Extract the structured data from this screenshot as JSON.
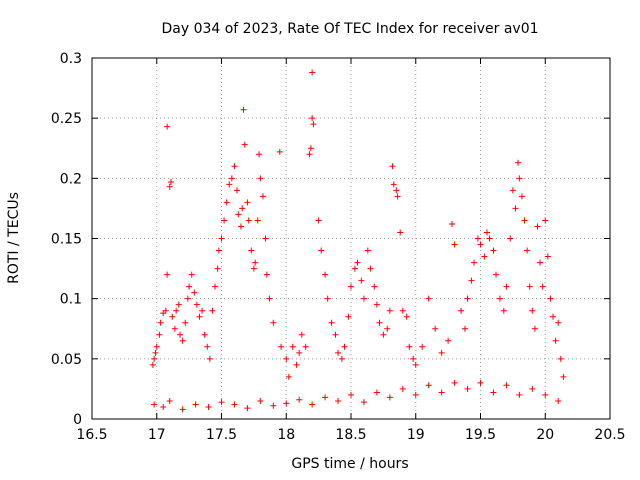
{
  "chart_data": {
    "type": "scatter",
    "title": "Day 034 of 2023, Rate Of TEC Index for receiver av01",
    "xlabel": "GPS time / hours",
    "ylabel": "ROTI / TECUs",
    "xlim": [
      16.5,
      20.5
    ],
    "ylim": [
      0,
      0.3
    ],
    "x_ticks": [
      "16.5",
      "17",
      "17.5",
      "18",
      "18.5",
      "19",
      "19.5",
      "20",
      "20.5"
    ],
    "y_ticks": [
      "0",
      "0.05",
      "0.1",
      "0.15",
      "0.2",
      "0.25",
      "0.3"
    ],
    "x_tick_values": [
      16.5,
      17,
      17.5,
      18,
      18.5,
      19,
      19.5,
      20,
      20.5
    ],
    "y_tick_values": [
      0,
      0.05,
      0.1,
      0.15,
      0.2,
      0.25,
      0.3
    ],
    "grid": true,
    "marker": "+",
    "color": "#ff0000",
    "series": [
      {
        "points": [
          [
            16.97,
            0.045
          ],
          [
            16.98,
            0.05
          ],
          [
            16.99,
            0.055
          ],
          [
            17.0,
            0.06
          ],
          [
            17.02,
            0.07
          ],
          [
            17.03,
            0.08
          ],
          [
            17.05,
            0.088
          ],
          [
            17.07,
            0.09
          ],
          [
            17.08,
            0.12
          ],
          [
            17.08,
            0.243
          ],
          [
            17.1,
            0.193
          ],
          [
            17.11,
            0.197
          ],
          [
            17.12,
            0.085
          ],
          [
            17.14,
            0.075
          ],
          [
            17.15,
            0.09
          ],
          [
            17.17,
            0.095
          ],
          [
            17.18,
            0.07
          ],
          [
            17.2,
            0.065
          ],
          [
            17.22,
            0.08
          ],
          [
            17.24,
            0.1
          ],
          [
            17.25,
            0.11
          ],
          [
            17.27,
            0.12
          ],
          [
            17.29,
            0.105
          ],
          [
            17.31,
            0.095
          ],
          [
            17.33,
            0.085
          ],
          [
            17.35,
            0.09
          ],
          [
            17.37,
            0.07
          ],
          [
            17.39,
            0.06
          ],
          [
            17.41,
            0.05
          ],
          [
            17.43,
            0.09
          ],
          [
            17.45,
            0.11
          ],
          [
            17.47,
            0.125
          ],
          [
            17.48,
            0.14
          ],
          [
            17.5,
            0.15
          ],
          [
            17.52,
            0.165
          ],
          [
            17.54,
            0.18
          ],
          [
            17.56,
            0.195
          ],
          [
            17.58,
            0.2
          ],
          [
            17.6,
            0.21
          ],
          [
            17.62,
            0.19
          ],
          [
            17.63,
            0.17
          ],
          [
            17.65,
            0.16
          ],
          [
            17.66,
            0.175
          ],
          [
            17.67,
            0.257
          ],
          [
            17.68,
            0.228
          ],
          [
            17.7,
            0.18
          ],
          [
            17.71,
            0.165
          ],
          [
            17.73,
            0.14
          ],
          [
            17.75,
            0.125
          ],
          [
            17.76,
            0.13
          ],
          [
            17.78,
            0.165
          ],
          [
            17.79,
            0.22
          ],
          [
            17.8,
            0.2
          ],
          [
            17.82,
            0.185
          ],
          [
            17.84,
            0.15
          ],
          [
            17.85,
            0.12
          ],
          [
            17.87,
            0.1
          ],
          [
            17.9,
            0.08
          ],
          [
            17.95,
            0.222
          ],
          [
            17.96,
            0.06
          ],
          [
            18.0,
            0.05
          ],
          [
            18.02,
            0.035
          ],
          [
            18.05,
            0.06
          ],
          [
            18.08,
            0.045
          ],
          [
            18.1,
            0.055
          ],
          [
            18.12,
            0.07
          ],
          [
            18.15,
            0.06
          ],
          [
            18.18,
            0.22
          ],
          [
            18.19,
            0.225
          ],
          [
            18.2,
            0.25
          ],
          [
            18.2,
            0.288
          ],
          [
            18.21,
            0.245
          ],
          [
            18.25,
            0.165
          ],
          [
            18.27,
            0.14
          ],
          [
            18.3,
            0.12
          ],
          [
            18.32,
            0.1
          ],
          [
            18.35,
            0.08
          ],
          [
            18.38,
            0.07
          ],
          [
            18.4,
            0.055
          ],
          [
            18.43,
            0.05
          ],
          [
            18.45,
            0.06
          ],
          [
            18.48,
            0.085
          ],
          [
            18.5,
            0.11
          ],
          [
            18.53,
            0.125
          ],
          [
            18.55,
            0.13
          ],
          [
            18.58,
            0.115
          ],
          [
            18.6,
            0.1
          ],
          [
            18.63,
            0.14
          ],
          [
            18.65,
            0.125
          ],
          [
            18.68,
            0.11
          ],
          [
            18.7,
            0.095
          ],
          [
            18.72,
            0.08
          ],
          [
            18.75,
            0.07
          ],
          [
            18.78,
            0.075
          ],
          [
            18.8,
            0.09
          ],
          [
            18.82,
            0.21
          ],
          [
            18.83,
            0.195
          ],
          [
            18.85,
            0.19
          ],
          [
            18.86,
            0.185
          ],
          [
            18.88,
            0.155
          ],
          [
            18.9,
            0.09
          ],
          [
            18.93,
            0.085
          ],
          [
            18.95,
            0.06
          ],
          [
            18.98,
            0.05
          ],
          [
            19.0,
            0.045
          ],
          [
            19.05,
            0.06
          ],
          [
            19.1,
            0.1
          ],
          [
            19.15,
            0.075
          ],
          [
            19.2,
            0.055
          ],
          [
            19.25,
            0.065
          ],
          [
            19.28,
            0.162
          ],
          [
            19.3,
            0.145
          ],
          [
            19.35,
            0.09
          ],
          [
            19.38,
            0.075
          ],
          [
            19.4,
            0.1
          ],
          [
            19.43,
            0.115
          ],
          [
            19.45,
            0.13
          ],
          [
            19.48,
            0.15
          ],
          [
            19.5,
            0.145
          ],
          [
            19.53,
            0.135
          ],
          [
            19.55,
            0.155
          ],
          [
            19.57,
            0.15
          ],
          [
            19.6,
            0.14
          ],
          [
            19.62,
            0.12
          ],
          [
            19.65,
            0.1
          ],
          [
            19.68,
            0.09
          ],
          [
            19.7,
            0.11
          ],
          [
            19.73,
            0.15
          ],
          [
            19.75,
            0.19
          ],
          [
            19.77,
            0.175
          ],
          [
            19.79,
            0.213
          ],
          [
            19.8,
            0.2
          ],
          [
            19.82,
            0.185
          ],
          [
            19.84,
            0.165
          ],
          [
            19.86,
            0.14
          ],
          [
            19.88,
            0.11
          ],
          [
            19.9,
            0.09
          ],
          [
            19.92,
            0.075
          ],
          [
            19.94,
            0.16
          ],
          [
            19.96,
            0.13
          ],
          [
            19.98,
            0.11
          ],
          [
            20.0,
            0.165
          ],
          [
            20.02,
            0.135
          ],
          [
            20.04,
            0.1
          ],
          [
            20.06,
            0.085
          ],
          [
            20.08,
            0.065
          ],
          [
            20.1,
            0.08
          ],
          [
            20.12,
            0.05
          ],
          [
            20.14,
            0.035
          ],
          [
            16.98,
            0.012
          ],
          [
            17.05,
            0.01
          ],
          [
            17.1,
            0.015
          ],
          [
            17.2,
            0.008
          ],
          [
            17.3,
            0.012
          ],
          [
            17.4,
            0.01
          ],
          [
            17.5,
            0.014
          ],
          [
            17.6,
            0.012
          ],
          [
            17.7,
            0.009
          ],
          [
            17.8,
            0.015
          ],
          [
            17.9,
            0.011
          ],
          [
            18.0,
            0.013
          ],
          [
            18.1,
            0.016
          ],
          [
            18.2,
            0.012
          ],
          [
            18.3,
            0.018
          ],
          [
            18.4,
            0.015
          ],
          [
            18.5,
            0.02
          ],
          [
            18.6,
            0.014
          ],
          [
            18.7,
            0.022
          ],
          [
            18.8,
            0.018
          ],
          [
            18.9,
            0.025
          ],
          [
            19.0,
            0.02
          ],
          [
            19.1,
            0.028
          ],
          [
            19.2,
            0.022
          ],
          [
            19.3,
            0.03
          ],
          [
            19.4,
            0.025
          ],
          [
            19.5,
            0.03
          ],
          [
            19.6,
            0.022
          ],
          [
            19.7,
            0.028
          ],
          [
            19.8,
            0.02
          ],
          [
            19.9,
            0.025
          ],
          [
            20.0,
            0.02
          ],
          [
            20.1,
            0.015
          ]
        ]
      }
    ]
  }
}
